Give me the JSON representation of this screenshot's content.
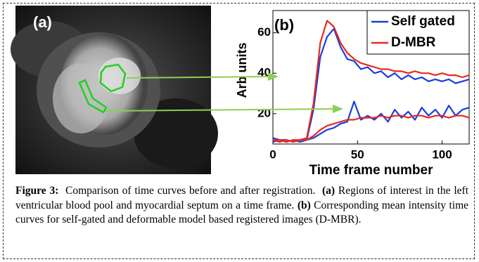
{
  "panel_a": {
    "label": "(a)"
  },
  "chart_data": {
    "type": "line",
    "label": "(b)",
    "xlabel": "Time frame number",
    "ylabel": "Arb units",
    "xlim": [
      0,
      116
    ],
    "ylim": [
      5,
      71
    ],
    "xticks": [
      0,
      50,
      100
    ],
    "yticks": [
      20,
      40,
      60
    ],
    "x": [
      0,
      4,
      8,
      12,
      16,
      20,
      24,
      28,
      32,
      36,
      40,
      44,
      48,
      52,
      56,
      60,
      64,
      68,
      72,
      76,
      80,
      84,
      88,
      92,
      96,
      100,
      104,
      108,
      112,
      116
    ],
    "series": [
      {
        "name": "Self gated",
        "color": "#1a3de0",
        "curves": [
          [
            8,
            7,
            7,
            6,
            7,
            7,
            22,
            48,
            58,
            62,
            53,
            47,
            46,
            42,
            43,
            40,
            41,
            38,
            40,
            37,
            39,
            37,
            38,
            36,
            37,
            36,
            37,
            35,
            36,
            37
          ],
          [
            6,
            7,
            6,
            7,
            6,
            7,
            8,
            10,
            12,
            13,
            15,
            16,
            26,
            17,
            19,
            17,
            20,
            16,
            22,
            18,
            21,
            17,
            23,
            19,
            22,
            18,
            24,
            19,
            22,
            23
          ]
        ]
      },
      {
        "name": "D-MBR",
        "color": "#e82a1c",
        "curves": [
          [
            7,
            7,
            6,
            7,
            7,
            8,
            25,
            55,
            66,
            63,
            55,
            50,
            47,
            45,
            44,
            43,
            42,
            42,
            41,
            41,
            40,
            41,
            40,
            40,
            39,
            40,
            39,
            39,
            38,
            39
          ],
          [
            7,
            6,
            7,
            6,
            7,
            7,
            9,
            12,
            14,
            15,
            16,
            17,
            17,
            18,
            18,
            18,
            19,
            18,
            19,
            19,
            18,
            19,
            19,
            18,
            19,
            19,
            18,
            19,
            19,
            18
          ]
        ]
      }
    ],
    "legend": "upper right"
  },
  "caption": {
    "label": "Figure 3:",
    "text": "Comparison of time curves before and after registration.",
    "a_label": "(a)",
    "a_text": "Regions of interest in the left ventricular blood pool and myocardial septum on a time frame.",
    "b_label": "(b)",
    "b_text": "Corresponding mean intensity time curves for self-gated and deformable model based registered images (D-MBR)."
  }
}
